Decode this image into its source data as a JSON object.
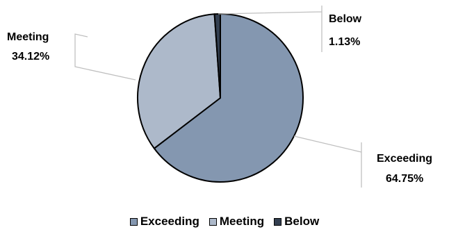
{
  "chart_data": {
    "type": "pie",
    "title": "",
    "slices": [
      {
        "name": "Exceeding",
        "value": 64.75,
        "label": "64.75%",
        "color": "#8497b0"
      },
      {
        "name": "Meeting",
        "value": 34.12,
        "label": "34.12%",
        "color": "#adb9ca"
      },
      {
        "name": "Below",
        "value": 1.13,
        "label": "1.13%",
        "color": "#333f50"
      }
    ],
    "legend": {
      "position": "bottom"
    },
    "data_labels": "outside with leader lines"
  }
}
